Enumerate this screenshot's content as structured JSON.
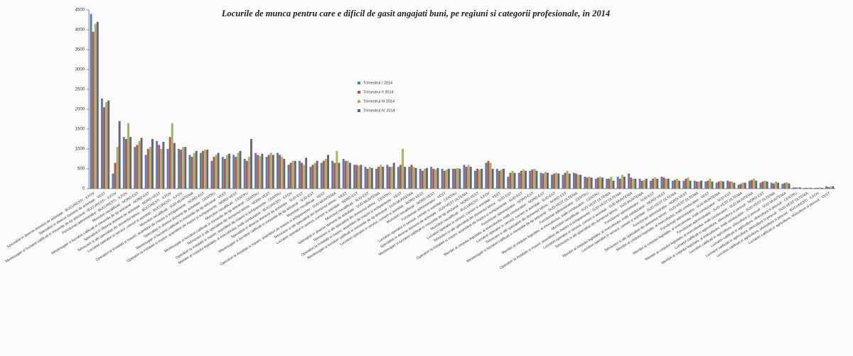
{
  "chart_data": {
    "type": "bar",
    "title": "Locurile de munca pentru care e dificil de gasit angajati buni, pe regiuni si categorii profesionale, in 2014",
    "categories": [
      "Specialisti in diverse domenii de activitate - BUCURESTI - ILFOV",
      "Specialisti in diverse domenii de activitate - VEST",
      "Mestesugari si lucratori calificati in meseriile de tip artizanal - BUCURESTI - ILFOV",
      "Functionari administrativi - BUCURESTI - ILFOV",
      "Muncitori necalificati - NORD-EST",
      "Mestesugari si lucratori calificati in meseriile de tip artizanal - NORD-EST",
      "Specialisti in diverse domenii de activitate - NORD-VEST",
      "Tehnicieni si alti specialisti din domeniul tehnic - BUCURESTI - ILFOV",
      "Lucratori operativi in servicii, comert si asimilati - BUCURESTI - ILFOV",
      "Muncitori necalificati - SUD-MUNTENIA",
      "Operatori la instalatii si masini; asamblori de masini si echipamente - NORD-EST",
      "Specialisti in diverse domenii de activitate - CENTRU",
      "Mestesugari si lucratori calificati in meseriile de tip artizanal - VEST",
      "Operatori la instalatii si masini; asamblori de masini si echipamente - NORD-VEST",
      "Muncitori necalificati - CENTRU",
      "Mestesugari si lucratori calificati in meseriile de tip artizanal - CENTRU",
      "Tehnicieni si alti specialisti din domeniul tehnic - NORD-VEST",
      "Operatori la instalatii si masini; asamblori de masini si echipamente - CENTRU",
      "Membri ai corpului legislativ, ai executivului, inalti conducatori - BUCURESTI - ILFOV",
      "Specialisti in diverse domenii de activitate - SUD-EST",
      "Mestesugari si lucratori calificati in meseriile de tip artizanal - SUD-EST",
      "Muncitori necalificati - VEST",
      "Operatori la instalatii si masini; asamblori de masini si echipamente - SUD-MUNTENIA",
      "Tehnicieni si alti specialisti din domeniul tehnic - VEST",
      "Lucratori operativi in servicii, comert si asimilati - NORD-EST",
      "Muncitori necalificati - SUD-EST",
      "Specialisti in diverse domenii de activitate - SUD-MUNTENIA",
      "Tehnicieni si alti specialisti din domeniul tehnic - CENTRU",
      "Operatori la instalatii si masini; asamblori de masini si echipamente - VEST",
      "Mestesugari si lucratori calificati in meseriile de tip artizanal - SUD-MUNTENIA",
      "Lucratori operativi in servicii, comert si asimilati - NORD-VEST",
      "Muncitori necalificati - NORD-VEST",
      "Functionari administrativi - VEST",
      "Lucratori operativi in servicii, comert si asimilati - CENTRU",
      "Specialisti in diverse domenii de activitate - SUD-VEST OLTENIA",
      "Mestesugari si lucratori calificati in meseriile de tip artizanal - NORD-VEST",
      "Muncitori necalificati - BUCURESTI - ILFOV",
      "Lucratori operativi in servicii, comert si asimilati - VEST",
      "Tehnicieni si alti specialisti din domeniul tehnic - SUD-EST",
      "Operatori la instalatii si masini; asamblori de masini si echipamente - SUD-EST",
      "Functionari administrativi - NORD-EST",
      "Membri ai corpului legislativ, ai executivului, inalti conducatori - NORD-EST",
      "Lucratori operativi in servicii, comert si asimilati - SUD-EST",
      "Tehnicieni si alti specialisti din domeniul tehnic - NORD-EST",
      "Mestesugari si lucratori calificati in meseriile de tip artizanal - SUD-VEST OLTENIA",
      "Functionari administrativi - CENTRU",
      "Membri ai corpului legislativ, ai executivului, inalti conducatori - CENTRU",
      "Muncitori necalificati - SUD-VEST OLTENIA",
      "Operatori la instalatii si masini; asamblori de masini si echipamente - SUD-VEST OLTENIA",
      "Lucratori operativi in servicii, comert si asimilati - SUD-MUNTENIA",
      "Tehnicieni si alti specialisti din domeniul tehnic - SUD-MUNTENIA",
      "Functionari administrativi - SUD-EST",
      "Membri ai corpului legislativ, ai executivului, inalti conducatori - NORD-VEST",
      "Lucratori operativi in servicii, comert si asimilati - SUD-VEST OLTENIA",
      "Functionari administrativi - NORD-VEST",
      "Tehnicieni si alti specialisti din domeniul tehnic - SUD-VEST OLTENIA",
      "Membri ai corpului legislativ, ai executivului, inalti conducatori - VEST",
      "Functionari administrativi - SUD-MUNTENIA",
      "Membri ai corpului legislativ, ai executivului, inalti conducatori - SUD-EST",
      "Functionari administrativi - SUD-VEST OLTENIA",
      "Membri ai corpului legislativ, ai executivului, inalti conducatori - SUD-MUNTENIA",
      "Lucratori calificati in agricultura, silvicultura si pescuit - NORD-EST",
      "Membri ai corpului legislativ, ai executivului, inalti conducatori - SUD-VEST OLTENIA",
      "Lucratori calificati in agricultura, silvicultura si pescuit - SUD-MUNTENIA",
      "Lucratori calificati in agricultura, silvicultura si pescuit - CENTRU",
      "Lucratori calificati in agricultura, silvicultura si pescuit - SUD-VEST OLTENIA",
      "Lucratori calificati in agricultura, silvicultura si pescuit - BUCURESTI - ILFOV",
      "Lucratori calificati in agricultura, silvicultura si pescuit - VEST"
    ],
    "series": [
      {
        "name": "Trimestrul I 2014",
        "color": "#4f81bd",
        "values": [
          4400,
          2270,
          380,
          1300,
          1050,
          850,
          1200,
          1000,
          1000,
          850,
          900,
          700,
          800,
          850,
          750,
          900,
          800,
          900,
          600,
          700,
          550,
          650,
          700,
          750,
          600,
          550,
          500,
          600,
          550,
          550,
          500,
          550,
          500,
          500,
          600,
          450,
          650,
          500,
          300,
          400,
          450,
          400,
          350,
          350,
          400,
          300,
          250,
          250,
          300,
          380,
          250,
          200,
          300,
          200,
          200,
          200,
          180,
          150,
          200,
          100,
          200,
          150,
          150,
          120,
          30,
          20,
          20,
          60
        ]
      },
      {
        "name": "Trimestrul II 2014",
        "color": "#c0504d",
        "values": [
          3950,
          2050,
          650,
          1250,
          1100,
          1000,
          1100,
          1300,
          980,
          800,
          950,
          800,
          750,
          800,
          700,
          850,
          850,
          850,
          650,
          650,
          600,
          700,
          650,
          700,
          600,
          500,
          550,
          550,
          600,
          600,
          450,
          500,
          450,
          500,
          550,
          500,
          700,
          450,
          400,
          450,
          480,
          380,
          380,
          400,
          380,
          280,
          280,
          250,
          250,
          280,
          200,
          250,
          280,
          220,
          250,
          180,
          200,
          180,
          180,
          120,
          220,
          180,
          130,
          140,
          30,
          20,
          20,
          40
        ]
      },
      {
        "name": "Trimestrul III 2014",
        "color": "#9bbb59",
        "values": [
          4150,
          2180,
          1050,
          1650,
          1200,
          1050,
          1000,
          1650,
          1050,
          900,
          980,
          850,
          850,
          900,
          800,
          820,
          900,
          800,
          700,
          600,
          650,
          750,
          950,
          700,
          580,
          550,
          600,
          550,
          1000,
          550,
          500,
          480,
          480,
          520,
          600,
          480,
          650,
          480,
          450,
          480,
          500,
          420,
          400,
          450,
          350,
          300,
          300,
          300,
          350,
          250,
          220,
          280,
          250,
          250,
          280,
          180,
          250,
          200,
          180,
          150,
          250,
          200,
          180,
          160,
          30,
          25,
          30,
          50
        ]
      },
      {
        "name": "Trimestrul IV 2014",
        "color": "#6f5d84",
        "values": [
          4200,
          2220,
          1700,
          1300,
          1280,
          1250,
          1180,
          1150,
          1050,
          950,
          980,
          900,
          880,
          950,
          1250,
          880,
          850,
          750,
          700,
          780,
          700,
          850,
          650,
          650,
          600,
          520,
          550,
          650,
          550,
          520,
          520,
          520,
          500,
          500,
          550,
          500,
          500,
          500,
          400,
          450,
          450,
          400,
          380,
          380,
          350,
          280,
          280,
          200,
          300,
          250,
          250,
          250,
          250,
          200,
          200,
          200,
          180,
          180,
          150,
          150,
          200,
          180,
          150,
          130,
          30,
          20,
          20,
          60
        ]
      }
    ],
    "ylim": [
      0,
      4500
    ],
    "yticks": [
      0,
      500,
      1000,
      1500,
      2000,
      2500,
      3000,
      3500,
      4000,
      4500
    ],
    "grid": false
  }
}
